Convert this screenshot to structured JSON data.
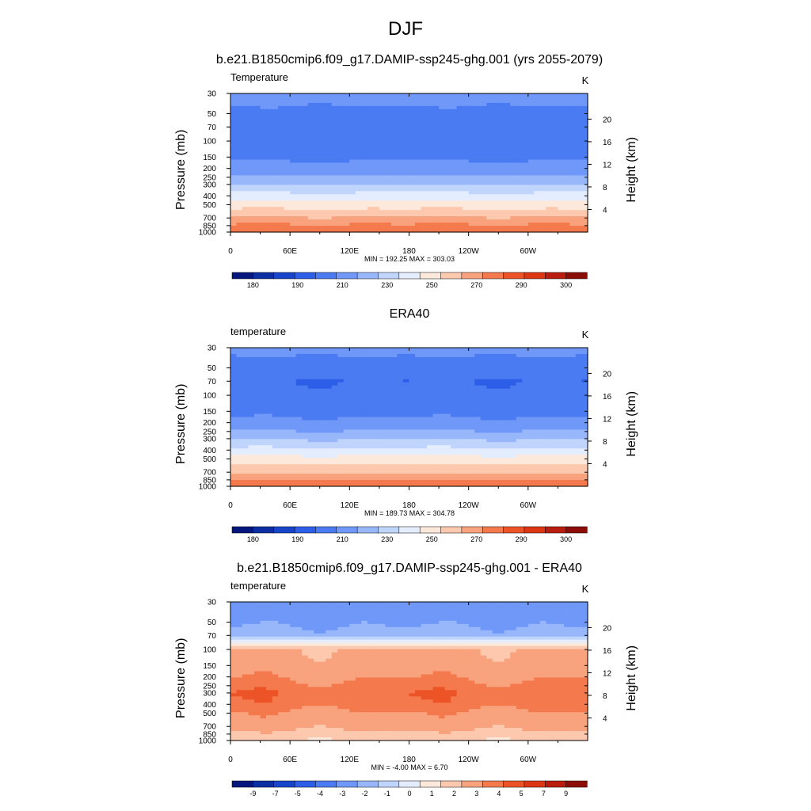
{
  "figure": {
    "title": "DJF"
  },
  "chart_data": [
    {
      "type": "heatmap",
      "title": "b.e21.B1850cmip6.f09_g17.DAMIP-ssp245-ghg.001 (yrs 2055-2079)",
      "left_label": "Temperature",
      "right_label": "K",
      "xlabel": "",
      "ylabel": "Pressure (mb)",
      "y2label": "Height (km)",
      "x_ticks": [
        "0",
        "60E",
        "120E",
        "180",
        "120W",
        "60W"
      ],
      "x_tick_values": [
        0,
        60,
        120,
        180,
        240,
        300
      ],
      "xlim": [
        0,
        360
      ],
      "y_ticks": [
        "30",
        "50",
        "70",
        "100",
        "150",
        "200",
        "250",
        "300",
        "400",
        "500",
        "700",
        "850",
        "1000"
      ],
      "y_tick_values": [
        30,
        50,
        70,
        100,
        150,
        200,
        250,
        300,
        400,
        500,
        700,
        850,
        1000
      ],
      "ylim": [
        1000,
        30
      ],
      "y_scale": "log",
      "y2_ticks": [
        "20",
        "16",
        "12",
        "8",
        "4"
      ],
      "y2_tick_values": [
        20,
        16,
        12,
        8,
        4
      ],
      "stats_text": "MIN = 192.25  MAX = 303.03",
      "min": 192.25,
      "max": 303.03,
      "zonal_mean_profile": {
        "pressure": [
          30,
          50,
          70,
          100,
          150,
          200,
          250,
          300,
          400,
          500,
          700,
          850,
          1000
        ],
        "value": [
          215,
          207,
          201,
          203,
          208,
          214,
          222,
          230,
          244,
          255,
          271,
          282,
          291
        ]
      },
      "colorbar": {
        "labels": [
          "180",
          "190",
          "210",
          "230",
          "250",
          "270",
          "290",
          "300"
        ],
        "levels": [
          175,
          180,
          185,
          190,
          200,
          210,
          220,
          230,
          240,
          250,
          260,
          270,
          280,
          290,
          295,
          300,
          305
        ],
        "colors": [
          "#05177d",
          "#0b2ea3",
          "#1744c9",
          "#2d5ee8",
          "#4a7bf2",
          "#6f98f8",
          "#98b7fb",
          "#c0d5fc",
          "#e4edfd",
          "#fde9dc",
          "#fcc9ae",
          "#f8a37d",
          "#f47a4e",
          "#ec5427",
          "#dd3613",
          "#b91d0d",
          "#8c0c06"
        ]
      }
    },
    {
      "type": "heatmap",
      "title": "ERA40",
      "left_label": "temperature",
      "right_label": "K",
      "xlabel": "",
      "ylabel": "Pressure (mb)",
      "y2label": "Height (km)",
      "x_ticks": [
        "0",
        "60E",
        "120E",
        "180",
        "120W",
        "60W"
      ],
      "x_tick_values": [
        0,
        60,
        120,
        180,
        240,
        300
      ],
      "xlim": [
        0,
        360
      ],
      "y_ticks": [
        "30",
        "50",
        "70",
        "100",
        "150",
        "200",
        "250",
        "300",
        "400",
        "500",
        "700",
        "850",
        "1000"
      ],
      "y_tick_values": [
        30,
        50,
        70,
        100,
        150,
        200,
        250,
        300,
        400,
        500,
        700,
        850,
        1000
      ],
      "ylim": [
        1000,
        30
      ],
      "y_scale": "log",
      "y2_ticks": [
        "20",
        "16",
        "12",
        "8",
        "4"
      ],
      "y2_tick_values": [
        20,
        16,
        12,
        8,
        4
      ],
      "stats_text": "MIN = 189.73  MAX = 304.78",
      "min": 189.73,
      "max": 304.78,
      "zonal_mean_profile": {
        "pressure": [
          30,
          50,
          70,
          100,
          150,
          200,
          250,
          300,
          400,
          500,
          700,
          850,
          1000
        ],
        "value": [
          213,
          206,
          200,
          202,
          207,
          213,
          221,
          229,
          243,
          254,
          269,
          280,
          290
        ]
      },
      "colorbar": {
        "labels": [
          "180",
          "190",
          "210",
          "230",
          "250",
          "270",
          "290",
          "300"
        ],
        "levels": [
          175,
          180,
          185,
          190,
          200,
          210,
          220,
          230,
          240,
          250,
          260,
          270,
          280,
          290,
          295,
          300,
          305
        ],
        "colors": [
          "#05177d",
          "#0b2ea3",
          "#1744c9",
          "#2d5ee8",
          "#4a7bf2",
          "#6f98f8",
          "#98b7fb",
          "#c0d5fc",
          "#e4edfd",
          "#fde9dc",
          "#fcc9ae",
          "#f8a37d",
          "#f47a4e",
          "#ec5427",
          "#dd3613",
          "#b91d0d",
          "#8c0c06"
        ]
      }
    },
    {
      "type": "heatmap",
      "title": "b.e21.B1850cmip6.f09_g17.DAMIP-ssp245-ghg.001 - ERA40",
      "left_label": "temperature",
      "right_label": "K",
      "xlabel": "",
      "ylabel": "Pressure (mb)",
      "y2label": "Height (km)",
      "x_ticks": [
        "0",
        "60E",
        "120E",
        "180",
        "120W",
        "60W"
      ],
      "x_tick_values": [
        0,
        60,
        120,
        180,
        240,
        300
      ],
      "xlim": [
        0,
        360
      ],
      "y_ticks": [
        "30",
        "50",
        "70",
        "100",
        "150",
        "200",
        "250",
        "300",
        "400",
        "500",
        "700",
        "850",
        "1000"
      ],
      "y_tick_values": [
        30,
        50,
        70,
        100,
        150,
        200,
        250,
        300,
        400,
        500,
        700,
        850,
        1000
      ],
      "ylim": [
        1000,
        30
      ],
      "y_scale": "log",
      "y2_ticks": [
        "20",
        "16",
        "12",
        "8",
        "4"
      ],
      "y2_tick_values": [
        20,
        16,
        12,
        8,
        4
      ],
      "stats_text": "MIN =  -4.00  MAX =   6.70",
      "min": -4.0,
      "max": 6.7,
      "zonal_mean_profile": {
        "pressure": [
          30,
          50,
          70,
          100,
          150,
          200,
          250,
          300,
          400,
          500,
          700,
          850,
          1000
        ],
        "value": [
          -2.5,
          -2.2,
          -1.5,
          3.2,
          3.5,
          3.8,
          4.5,
          4.8,
          4.6,
          3.8,
          3.4,
          2.6,
          2.2
        ]
      },
      "colorbar": {
        "labels": [
          "-9",
          "-7",
          "-5",
          "-4",
          "-3",
          "-2",
          "-1",
          "0",
          "1",
          "2",
          "3",
          "4",
          "5",
          "7",
          "9"
        ],
        "levels": [
          -11,
          -9,
          -7,
          -5,
          -4,
          -3,
          -2,
          -1,
          0,
          1,
          2,
          3,
          4,
          5,
          7,
          9,
          11
        ],
        "colors": [
          "#05177d",
          "#0b2ea3",
          "#1744c9",
          "#2d5ee8",
          "#4a7bf2",
          "#6f98f8",
          "#98b7fb",
          "#c0d5fc",
          "#e4edfd",
          "#fde9dc",
          "#fcc9ae",
          "#f8a37d",
          "#f47a4e",
          "#ec5427",
          "#dd3613",
          "#b91d0d",
          "#8c0c06"
        ]
      }
    }
  ]
}
